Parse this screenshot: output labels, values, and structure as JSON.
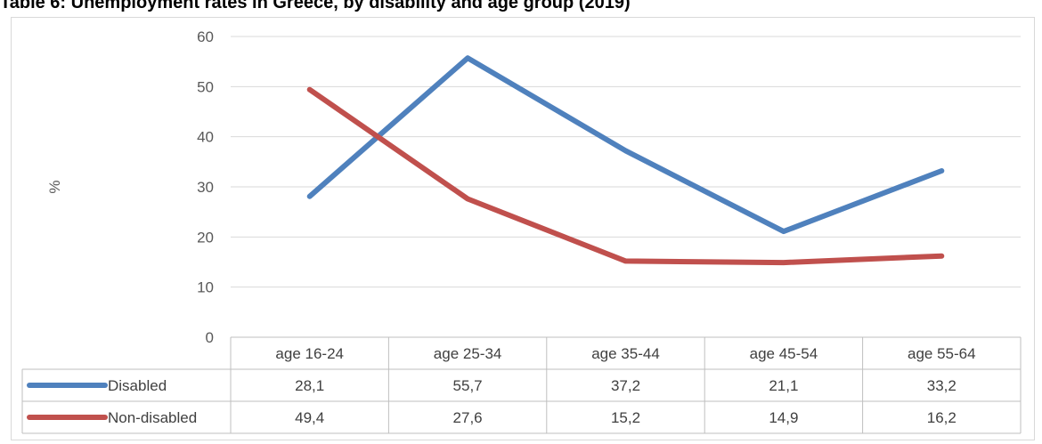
{
  "title": "Table 6: Unemployment rates in Greece, by disability and age group (2019)",
  "chart_data": {
    "type": "line",
    "categories": [
      "age 16-24",
      "age 25-34",
      "age 35-44",
      "age 45-54",
      "age 55-64"
    ],
    "series": [
      {
        "name": "Disabled",
        "values": [
          28.1,
          55.7,
          37.2,
          21.1,
          33.2
        ],
        "labels": [
          "28,1",
          "55,7",
          "37,2",
          "21,1",
          "33,2"
        ],
        "color": "#4f81bd"
      },
      {
        "name": "Non-disabled",
        "values": [
          49.4,
          27.6,
          15.2,
          14.9,
          16.2
        ],
        "labels": [
          "49,4",
          "27,6",
          "15,2",
          "14,9",
          "16,2"
        ],
        "color": "#c0504d"
      }
    ],
    "ylabel": "%",
    "ylim": [
      0,
      60
    ],
    "yticks": [
      "0",
      "10",
      "20",
      "30",
      "40",
      "50",
      "60"
    ],
    "grid": true,
    "legend": "data-table"
  }
}
